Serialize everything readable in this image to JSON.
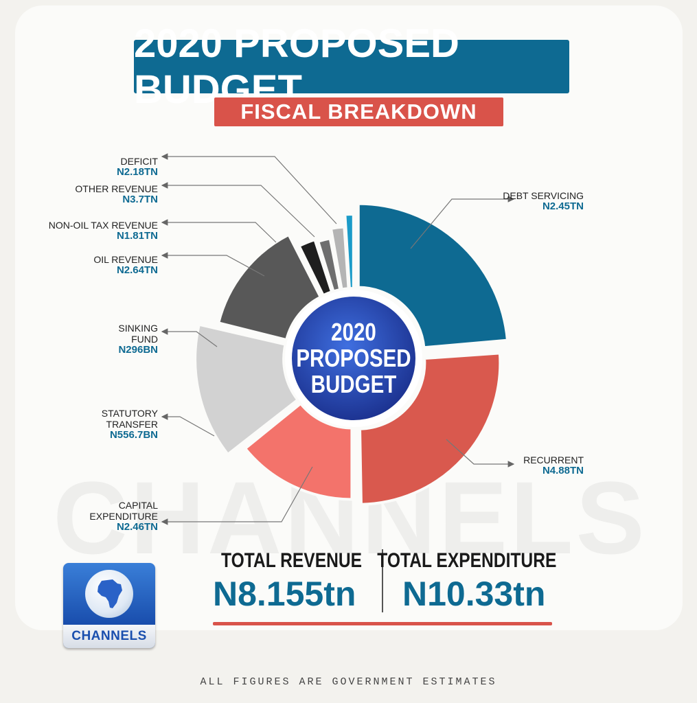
{
  "header": {
    "title": "2020 PROPOSED BUDGET",
    "subtitle": "FISCAL BREAKDOWN"
  },
  "center_label": [
    "2020",
    "PROPOSED",
    "BUDGET"
  ],
  "chart_data": {
    "type": "pie",
    "title": "2020 PROPOSED BUDGET",
    "subtitle": "FISCAL BREAKDOWN",
    "slices": [
      {
        "label": "DEBT SERVICING",
        "value_text": "N2.45tn",
        "color": "#0e6a92"
      },
      {
        "label": "RECURRENT",
        "value_text": "N4.88tn",
        "color": "#d9594e"
      },
      {
        "label": "CAPITAL EXPENDITURE",
        "value_text": "N2.46tn",
        "color": "#f3736b"
      },
      {
        "label": "STATUTORY TRANSFER",
        "value_text": "N556.7bn",
        "color": "#d2d2d2"
      },
      {
        "label": "SINKING FUND",
        "value_text": "N296bn",
        "color": "#585858"
      },
      {
        "label": "OIL REVENUE",
        "value_text": "N2.64tn",
        "color": "#1e1e1e"
      },
      {
        "label": "NON-OIL TAX REVENUE",
        "value_text": "N1.81tn",
        "color": "#6e6e6e"
      },
      {
        "label": "OTHER REVENUE",
        "value_text": "N3.7tn",
        "color": "#b4b4b4"
      },
      {
        "label": "DEFICIT",
        "value_text": "N2.18tn",
        "color": "#1b9bc8"
      }
    ]
  },
  "labels": {
    "deficit": {
      "name": "DEFICIT",
      "value": "N2.18tn"
    },
    "other_revenue": {
      "name": "OTHER REVENUE",
      "value": "N3.7tn"
    },
    "non_oil": {
      "name": "NON-OIL TAX REVENUE",
      "value": "N1.81tn"
    },
    "oil": {
      "name": "OIL REVENUE",
      "value": "N2.64tn"
    },
    "sinking": {
      "name1": "SINKING",
      "name2": "FUND",
      "value": "N296bn"
    },
    "statutory": {
      "name1": "STATUTORY",
      "name2": "TRANSFER",
      "value": "N556.7bn"
    },
    "capital": {
      "name1": "CAPITAL",
      "name2": "EXPENDITURE",
      "value": "N2.46tn"
    },
    "debt": {
      "name": "DEBT SERVICING",
      "value": "N2.45tn"
    },
    "recurrent": {
      "name": "RECURRENT",
      "value": "N4.88tn"
    }
  },
  "totals": {
    "revenue_label": "TOTAL REVENUE",
    "revenue_value": "N8.155tn",
    "expenditure_label": "TOTAL EXPENDITURE",
    "expenditure_value": "N10.33tn"
  },
  "watermark": "CHANNELS",
  "logo": {
    "text": "CHANNELS"
  },
  "footnote": "ALL FIGURES ARE GOVERNMENT ESTIMATES",
  "colors": {
    "blue": "#0e6a92",
    "red": "#d9534a"
  }
}
